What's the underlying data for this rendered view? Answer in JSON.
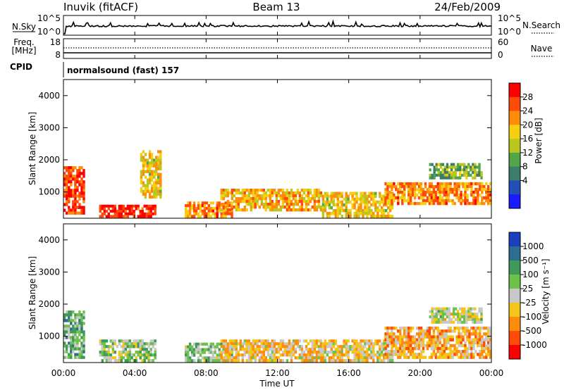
{
  "header": {
    "station": "Inuvik (fitACF)",
    "beam": "Beam 13",
    "date": "24/Feb/2009"
  },
  "noise_panel": {
    "left_label": "N.Sky",
    "right_label": "N.Search",
    "left_ticks": [
      "10^5",
      "10^0"
    ],
    "right_ticks": [
      "10^5",
      "10^0"
    ]
  },
  "freq_panel": {
    "left_label_line1": "Freq.",
    "left_label_line2": "[MHz]",
    "right_label": "Nave",
    "left_ticks": [
      "18",
      "8"
    ],
    "right_ticks": [
      "60",
      "0"
    ]
  },
  "cpid": {
    "label": "CPID",
    "text": "normalsound (fast) 157"
  },
  "x_axis": {
    "title": "Time UT",
    "ticks": [
      "00:00",
      "04:00",
      "08:00",
      "12:00",
      "16:00",
      "20:00",
      "00:00"
    ]
  },
  "power_panel": {
    "ylabel": "Slant Range [km]",
    "y_ticks": [
      "1000",
      "2000",
      "3000",
      "4000"
    ],
    "colorbar_label": "Power [dB]",
    "colorbar_ticks": [
      "4",
      "8",
      "12",
      "16",
      "20",
      "24",
      "28"
    ],
    "colors": [
      "#1a1aff",
      "#2151b8",
      "#3a7d6b",
      "#52a64a",
      "#b9c71f",
      "#f5cf10",
      "#ff8c0a",
      "#ff4a08",
      "#ff0000"
    ]
  },
  "velocity_panel": {
    "ylabel": "Slant Range [km]",
    "y_ticks": [
      "1000",
      "2000",
      "3000",
      "4000"
    ],
    "colorbar_label": "Velocity [m s⁻¹]",
    "colorbar_ticks": [
      "1000",
      "500",
      "100",
      "25",
      "-25",
      "-100",
      "-500",
      "-1000"
    ],
    "colors": [
      "#1a3fbf",
      "#2b6e8f",
      "#3f9a5a",
      "#6cc24a",
      "#c8c8c8",
      "#f5c61a",
      "#ff8c0a",
      "#ff4a08",
      "#ff0000"
    ]
  },
  "chart_data": {
    "type": "heatmap",
    "x": {
      "label": "Time UT",
      "range_hours": [
        0,
        24
      ]
    },
    "y": {
      "label": "Slant Range [km]",
      "range": [
        180,
        4500
      ]
    },
    "panels": [
      {
        "name": "Power [dB]",
        "value_range": [
          0,
          30
        ],
        "echo_regions": [
          {
            "t_start": 0.0,
            "t_end": 1.2,
            "r_start": 300,
            "r_end": 1800,
            "value": 26
          },
          {
            "t_start": 2.0,
            "t_end": 5.2,
            "r_start": 200,
            "r_end": 600,
            "value": 28
          },
          {
            "t_start": 4.3,
            "t_end": 5.5,
            "r_start": 800,
            "r_end": 2300,
            "value": 18
          },
          {
            "t_start": 6.8,
            "t_end": 9.5,
            "r_start": 200,
            "r_end": 700,
            "value": 22
          },
          {
            "t_start": 8.8,
            "t_end": 14.5,
            "r_start": 400,
            "r_end": 1100,
            "value": 20
          },
          {
            "t_start": 14.5,
            "t_end": 18.5,
            "r_start": 200,
            "r_end": 1000,
            "value": 18
          },
          {
            "t_start": 18.0,
            "t_end": 24.0,
            "r_start": 600,
            "r_end": 1300,
            "value": 22
          },
          {
            "t_start": 20.5,
            "t_end": 23.5,
            "r_start": 1400,
            "r_end": 1900,
            "value": 12
          }
        ]
      },
      {
        "name": "Velocity [m s-1]",
        "value_range": [
          -1000,
          1000
        ],
        "echo_regions": [
          {
            "t_start": 0.0,
            "t_end": 1.2,
            "r_start": 300,
            "r_end": 1800,
            "value": 300
          },
          {
            "t_start": 2.0,
            "t_end": 5.2,
            "r_start": 200,
            "r_end": 900,
            "value": 150
          },
          {
            "t_start": 6.8,
            "t_end": 9.5,
            "r_start": 200,
            "r_end": 800,
            "value": 200
          },
          {
            "t_start": 8.8,
            "t_end": 14.5,
            "r_start": 200,
            "r_end": 900,
            "value": -200
          },
          {
            "t_start": 14.5,
            "t_end": 18.5,
            "r_start": 200,
            "r_end": 900,
            "value": -150
          },
          {
            "t_start": 18.0,
            "t_end": 24.0,
            "r_start": 300,
            "r_end": 1300,
            "value": -300
          },
          {
            "t_start": 20.5,
            "t_end": 23.5,
            "r_start": 1400,
            "r_end": 1900,
            "value": 0
          }
        ]
      }
    ]
  }
}
